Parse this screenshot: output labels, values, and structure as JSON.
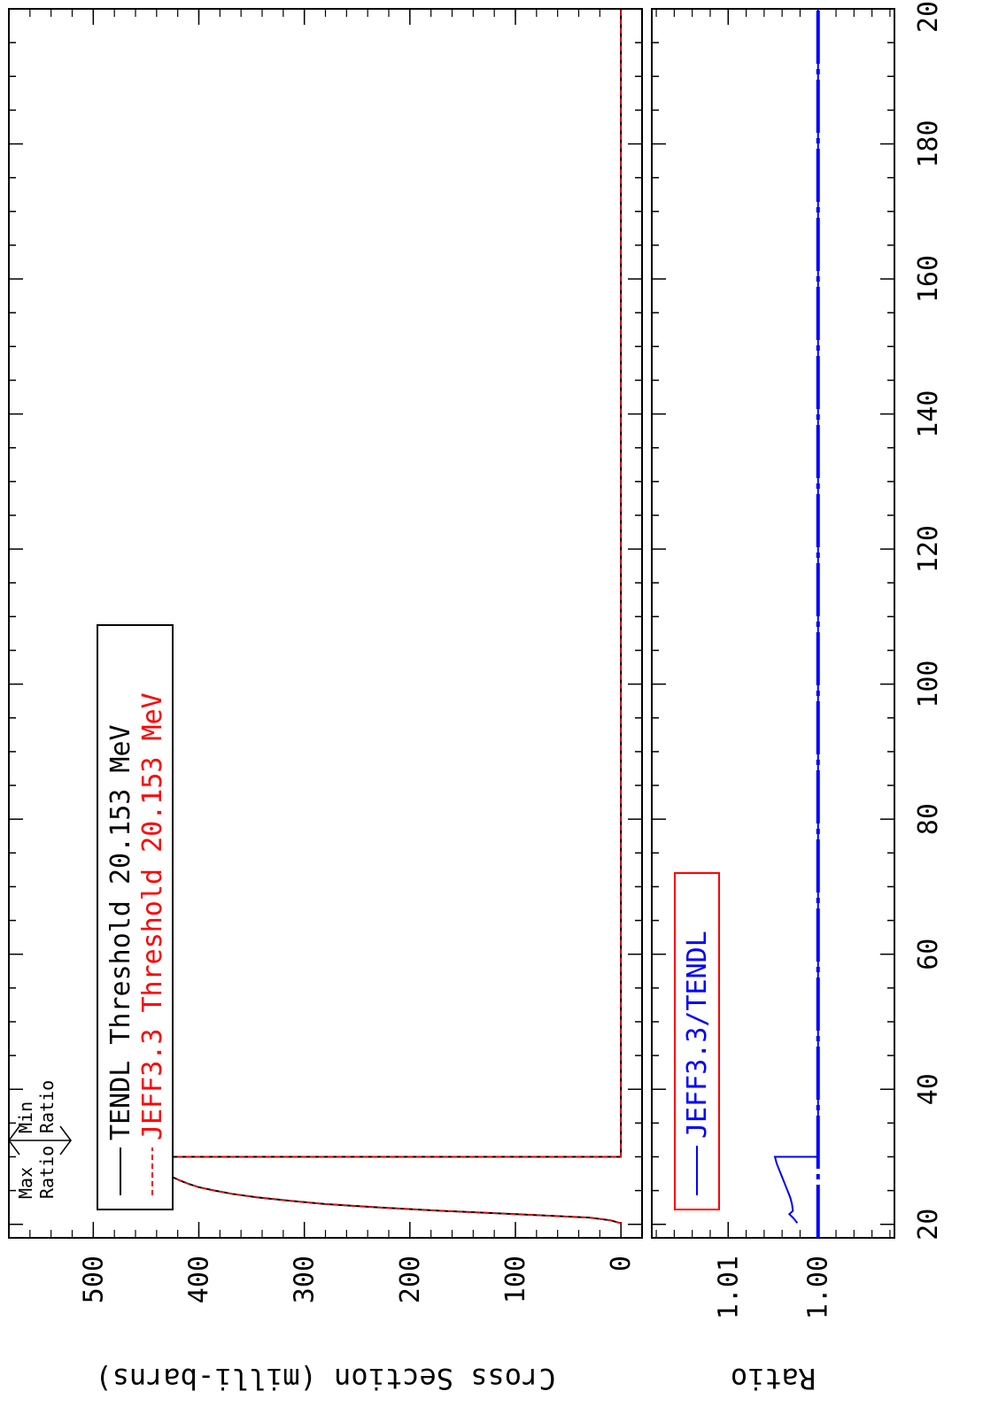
{
  "chart_data": [
    {
      "type": "line",
      "title": "",
      "xlabel": "",
      "ylabel": "Cross Section (milli-barns)",
      "xlim": [
        18,
        200
      ],
      "ylim": [
        -20,
        580
      ],
      "x_ticks": [
        20,
        40,
        60,
        80,
        100,
        120,
        140,
        160,
        180,
        200
      ],
      "y_ticks": [
        0,
        100,
        200,
        300,
        400,
        500
      ],
      "grid": false,
      "legend": {
        "placement": "top-left",
        "entries": [
          "TENDL Threshold 20.153 MeV",
          "JEFF3.3 Threshold 20.153 MeV"
        ]
      },
      "annotations": {
        "max_ratio": "Max\nRatio",
        "min_ratio": "Min\nRatio"
      },
      "series": [
        {
          "name": "TENDL Threshold 20.153 MeV",
          "color": "#000000",
          "style": "solid",
          "x": [
            20.153,
            20.6,
            21.0,
            21.5,
            22,
            22.5,
            23,
            23.5,
            24,
            24.5,
            25,
            25.5,
            26,
            26.5,
            27,
            27.5,
            28,
            28.5,
            29,
            29.5,
            30,
            30,
            200
          ],
          "y": [
            0,
            10,
            30,
            100,
            170,
            230,
            280,
            315,
            345,
            368,
            385,
            400,
            410,
            418,
            425,
            430,
            435,
            440,
            443,
            446,
            448,
            0,
            0
          ]
        },
        {
          "name": "JEFF3.3 Threshold 20.153 MeV",
          "color": "#ff0000",
          "style": "dashed",
          "x": [
            20.153,
            20.6,
            21.0,
            21.5,
            22,
            22.5,
            23,
            23.5,
            24,
            24.5,
            25,
            25.5,
            26,
            26.5,
            27,
            27.5,
            28,
            28.5,
            29,
            29.5,
            30,
            30,
            200
          ],
          "y": [
            0,
            10,
            30,
            100,
            170,
            230,
            280,
            315,
            345,
            368,
            385,
            400,
            410,
            418,
            425,
            430,
            435,
            440,
            443,
            446,
            448,
            0,
            0
          ]
        }
      ]
    },
    {
      "type": "line",
      "title": "",
      "xlabel": "",
      "ylabel": "Ratio",
      "xlim": [
        18,
        200
      ],
      "ylim": [
        0.9915,
        1.0185
      ],
      "x_ticks": [
        20,
        40,
        60,
        80,
        100,
        120,
        140,
        160,
        180,
        200
      ],
      "y_ticks": [
        1.0,
        1.01
      ],
      "grid": false,
      "legend": {
        "placement": "top-left",
        "entries": [
          "JEFF3.3/TENDL"
        ]
      },
      "series": [
        {
          "name": "JEFF3.3/TENDL",
          "color": "#0000ff",
          "style": "solid",
          "x": [
            20.2,
            21,
            21.5,
            22,
            23,
            24,
            25,
            26,
            27,
            28,
            29,
            30,
            30,
            200
          ],
          "y": [
            1.0023,
            1.0028,
            1.0032,
            1.0028,
            1.0029,
            1.0031,
            1.0034,
            1.0037,
            1.004,
            1.0043,
            1.0046,
            1.0048,
            1.0,
            1.0
          ]
        }
      ]
    }
  ]
}
